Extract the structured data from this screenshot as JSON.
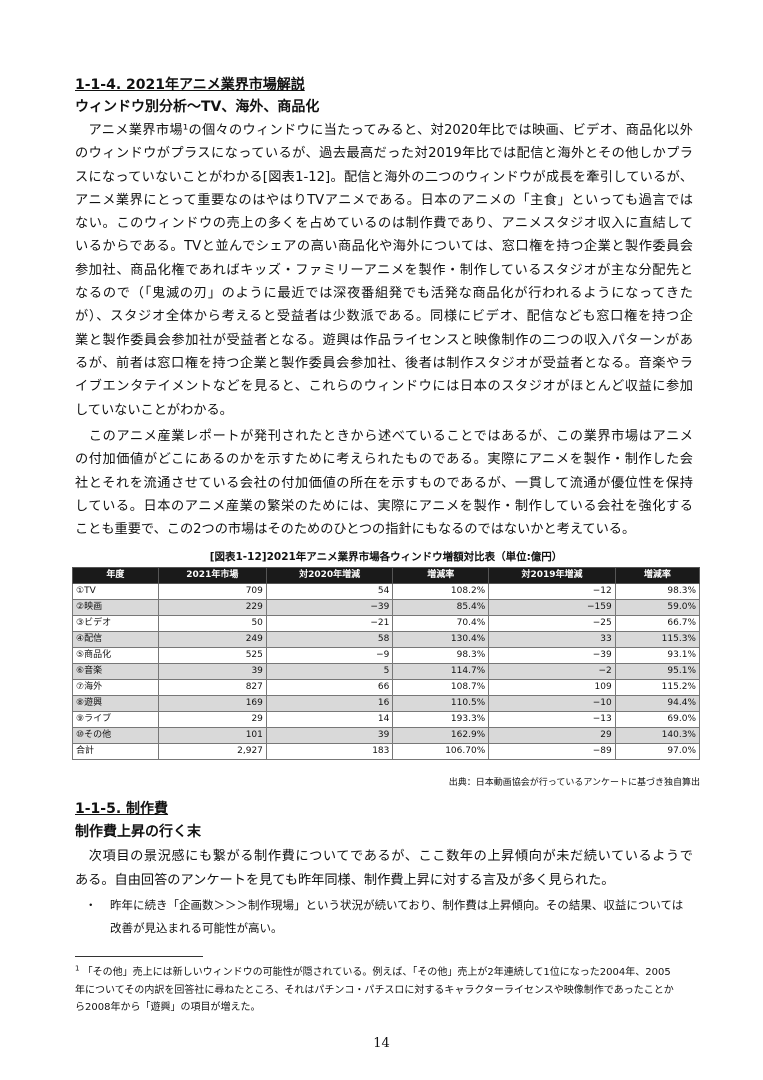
{
  "section1": {
    "heading": "1-1-4. 2021年アニメ業界市場解説",
    "subheading": "ウィンドウ別分析～TV、海外、商品化",
    "para1": [
      "　アニメ業界市場¹の個々のウィンドウに当たってみると、対2020年比では映画、ビデオ、商品化以外",
      "のウィンドウがプラスになっているが、過去最高だった対2019年比では配信と海外とその他しかプラ",
      "スになっていないことがわかる[図表1-12]。配信と海外の二つのウィンドウが成長を牽引しているが、",
      "アニメ業界にとって重要なのはやはりTVアニメである。日本のアニメの「主食」といっても過言では",
      "ない。このウィンドウの売上の多くを占めているのは制作費であり、アニメスタジオ収入に直結して",
      "いるからである。TVと並んでシェアの高い商品化や海外については、窓口権を持つ企業と製作委員会",
      "参加社、商品化権であればキッズ・ファミリーアニメを製作・制作しているスタジオが主な分配先と",
      "なるので（「鬼滅の刃」のように最近では深夜番組発でも活発な商品化が行われるようになってきた",
      "が）、スタジオ全体から考えると受益者は少数派である。同様にビデオ、配信なども窓口権を持つ企",
      "業と製作委員会参加社が受益者となる。遊興は作品ライセンスと映像制作の二つの収入パターンがあ",
      "るが、前者は窓口権を持つ企業と製作委員会参加社、後者は制作スタジオが受益者となる。音楽やラ",
      "イブエンタテイメントなどを見ると、これらのウィンドウには日本のスタジオがほとんど収益に参加",
      "していないことがわかる。"
    ],
    "para2": [
      "　このアニメ産業レポートが発刊されたときから述べていることではあるが、この業界市場はアニメ",
      "の付加価値がどこにあるのかを示すために考えられたものである。実際にアニメを製作・制作した会",
      "社とそれを流通させている会社の付加価値の所在を示すものであるが、一貫して流通が優位性を保持",
      "している。日本のアニメ産業の繁栄のためには、実際にアニメを製作・制作している会社を強化する",
      "ことも重要で、この2つの市場はそのためのひとつの指針にもなるのではないかと考えている。"
    ]
  },
  "table": {
    "caption": "[図表1-12]2021年アニメ業界市場各ウィンドウ増額対比表（単位:億円）",
    "headers": [
      "年度",
      "2021年市場",
      "対2020年増減",
      "増減率",
      "対2019年増減",
      "増減率"
    ],
    "rows": [
      [
        "①TV",
        "709",
        "54",
        "108.2%",
        "−12",
        "98.3%"
      ],
      [
        "②映画",
        "229",
        "−39",
        "85.4%",
        "−159",
        "59.0%"
      ],
      [
        "③ビデオ",
        "50",
        "−21",
        "70.4%",
        "−25",
        "66.7%"
      ],
      [
        "④配信",
        "249",
        "58",
        "130.4%",
        "33",
        "115.3%"
      ],
      [
        "⑤商品化",
        "525",
        "−9",
        "98.3%",
        "−39",
        "93.1%"
      ],
      [
        "⑥音楽",
        "39",
        "5",
        "114.7%",
        "−2",
        "95.1%"
      ],
      [
        "⑦海外",
        "827",
        "66",
        "108.7%",
        "109",
        "115.2%"
      ],
      [
        "⑧遊興",
        "169",
        "16",
        "110.5%",
        "−10",
        "94.4%"
      ],
      [
        "⑨ライブ",
        "29",
        "14",
        "193.3%",
        "−13",
        "69.0%"
      ],
      [
        "⑩その他",
        "101",
        "39",
        "162.9%",
        "29",
        "140.3%"
      ],
      [
        "合計",
        "2,927",
        "183",
        "106.70%",
        "−89",
        "97.0%"
      ]
    ],
    "source": "出典：日本動画協会が行っているアンケートに基づき独自算出"
  },
  "section2": {
    "heading": "1-1-5. 制作費",
    "subheading": "制作費上昇の行く末",
    "para": [
      "　次項目の景況感にも繋がる制作費についてであるが、ここ数年の上昇傾向が未だ続いているようで",
      "ある。自由回答のアンケートを見ても昨年同様、制作費上昇に対する言及が多く見られた。"
    ],
    "bullet_mark": "・",
    "bullet": [
      "昨年に続き「企画数＞＞＞制作現場」という状況が続いており、制作費は上昇傾向。その結果、収益については",
      "改善が見込まれる可能性が高い。"
    ]
  },
  "footnote": {
    "mark": "1",
    "lines": [
      "「その他」売上には新しいウィンドウの可能性が隠されている。例えば、「その他」売上が2年連続して1位になった2004年、2005",
      "年についてその内訳を回答社に尋ねたところ、それはパチンコ・パチスロに対するキャラクターライセンスや映像制作であったことか",
      "ら2008年から「遊興」の項目が増えた。"
    ]
  },
  "page_number": "14"
}
